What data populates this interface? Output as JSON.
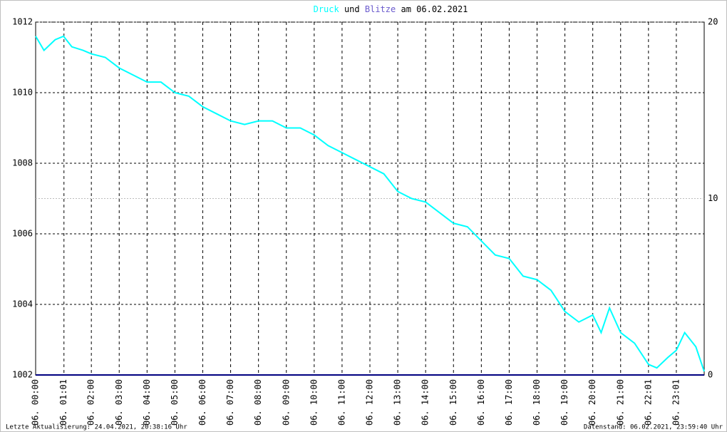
{
  "chart_data": {
    "type": "line",
    "title_parts": [
      "und",
      "am 06.02.2021"
    ],
    "footer_left": "Letzte Aktualisierung: 24.04.2021, 20:38:16 Uhr",
    "footer_right": "Datenstand: 06.02.2021, 23:59:40 Uhr",
    "xlim": [
      0,
      24
    ],
    "xticks": [
      {
        "value": 0,
        "label": "06. 00:00"
      },
      {
        "value": 1.0167,
        "label": "06. 01:01"
      },
      {
        "value": 2,
        "label": "06. 02:00"
      },
      {
        "value": 3,
        "label": "06. 03:00"
      },
      {
        "value": 4,
        "label": "06. 04:00"
      },
      {
        "value": 5,
        "label": "06. 05:00"
      },
      {
        "value": 6,
        "label": "06. 06:00"
      },
      {
        "value": 7,
        "label": "06. 07:00"
      },
      {
        "value": 8,
        "label": "06. 08:00"
      },
      {
        "value": 9,
        "label": "06. 09:00"
      },
      {
        "value": 10,
        "label": "06. 10:00"
      },
      {
        "value": 11,
        "label": "06. 11:00"
      },
      {
        "value": 12,
        "label": "06. 12:00"
      },
      {
        "value": 13,
        "label": "06. 13:00"
      },
      {
        "value": 14,
        "label": "06. 14:00"
      },
      {
        "value": 15,
        "label": "06. 15:00"
      },
      {
        "value": 16,
        "label": "06. 16:00"
      },
      {
        "value": 17,
        "label": "06. 17:00"
      },
      {
        "value": 18,
        "label": "06. 18:00"
      },
      {
        "value": 19,
        "label": "06. 19:00"
      },
      {
        "value": 20,
        "label": "06. 20:00"
      },
      {
        "value": 21,
        "label": "06. 21:00"
      },
      {
        "value": 22,
        "label": "06. 22:01"
      },
      {
        "value": 23,
        "label": "06. 23:01"
      }
    ],
    "ylim": [
      1002,
      1012
    ],
    "yticks": [
      1002,
      1004,
      1006,
      1008,
      1010,
      1012
    ],
    "y2lim": [
      0,
      20
    ],
    "y2ticks": [
      0,
      10,
      20
    ],
    "grid": true,
    "series": [
      {
        "name": "Druck",
        "color": "#00ffff",
        "x": [
          0,
          0.3,
          0.7,
          1.0,
          1.3,
          1.7,
          2.0,
          2.5,
          3.0,
          3.5,
          4.0,
          4.5,
          5.0,
          5.5,
          6.0,
          6.5,
          7.0,
          7.5,
          8.0,
          8.5,
          9.0,
          9.5,
          10.0,
          10.5,
          11.0,
          11.5,
          12.0,
          12.5,
          13.0,
          13.5,
          14.0,
          14.5,
          15.0,
          15.5,
          16.0,
          16.5,
          17.0,
          17.5,
          18.0,
          18.5,
          19.0,
          19.5,
          20.0,
          20.3,
          20.6,
          21.0,
          21.5,
          22.0,
          22.3,
          22.7,
          23.0,
          23.3,
          23.7,
          24.0
        ],
        "values": [
          1011.6,
          1011.2,
          1011.5,
          1011.6,
          1011.3,
          1011.2,
          1011.1,
          1011.0,
          1010.7,
          1010.5,
          1010.3,
          1010.3,
          1010.0,
          1009.9,
          1009.6,
          1009.4,
          1009.2,
          1009.1,
          1009.2,
          1009.2,
          1009.0,
          1009.0,
          1008.8,
          1008.5,
          1008.3,
          1008.1,
          1007.9,
          1007.7,
          1007.2,
          1007.0,
          1006.9,
          1006.6,
          1006.3,
          1006.2,
          1005.8,
          1005.4,
          1005.3,
          1004.8,
          1004.7,
          1004.4,
          1003.8,
          1003.5,
          1003.7,
          1003.2,
          1003.9,
          1003.2,
          1002.9,
          1002.3,
          1002.2,
          1002.5,
          1002.7,
          1003.2,
          1002.8,
          1002.1
        ]
      },
      {
        "name": "Blitze",
        "color": "#000080",
        "axis": "y2",
        "x": [
          0,
          24
        ],
        "values": [
          0,
          0
        ]
      }
    ]
  }
}
